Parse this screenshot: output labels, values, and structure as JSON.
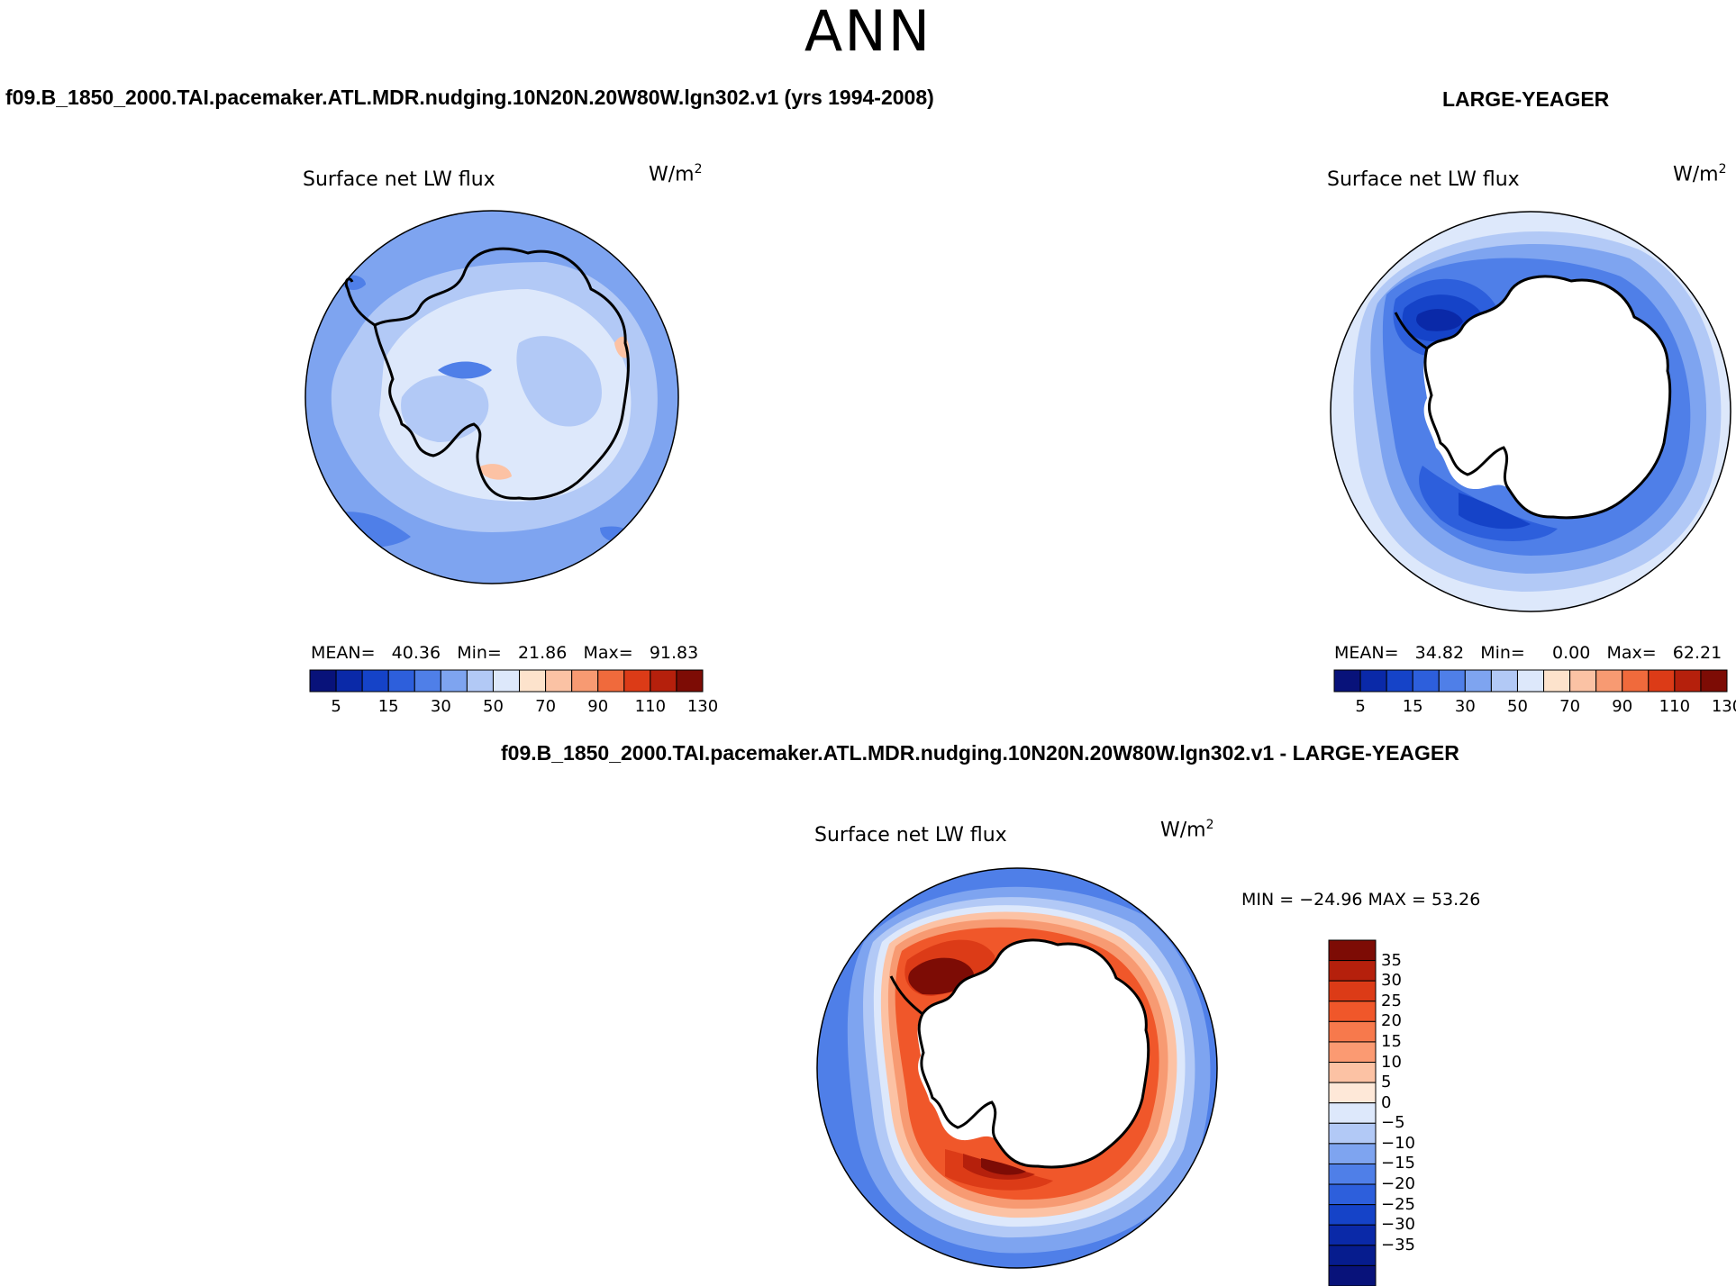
{
  "figure": {
    "title": "ANN",
    "bottom_title": "f09.B_1850_2000.TAI.pacemaker.ATL.MDR.nudging.10N20N.20W80W.lgn302.v1 - LARGE-YEAGER"
  },
  "panels": [
    {
      "case_title": "f09.B_1850_2000.TAI.pacemaker.ATL.MDR.nudging.10N20N.20W80W.lgn302.v1 (yrs 1994-2008)",
      "variable": "Surface net LW flux",
      "units": "W/m",
      "units_sup": "2",
      "stats": {
        "mean_label": "MEAN=",
        "mean": "40.36",
        "min_label": "Min=",
        "min": "21.86",
        "max_label": "Max=",
        "max": "91.83"
      }
    },
    {
      "case_title": "LARGE-YEAGER",
      "variable": "Surface net LW flux",
      "units": "W/m",
      "units_sup": "2",
      "stats": {
        "mean_label": "MEAN=",
        "mean": "34.82",
        "min_label": "Min=",
        "min": "0.00",
        "max_label": "Max=",
        "max": "62.21"
      }
    },
    {
      "variable": "Surface net LW flux",
      "units": "W/m",
      "units_sup": "2",
      "minmax": "MIN = −24.96  MAX =   53.26"
    }
  ],
  "colorbar_abs": {
    "colors": [
      "#08127a",
      "#0a29a8",
      "#1543c8",
      "#2d5fdc",
      "#4f7fe8",
      "#7ea4f0",
      "#b2c9f6",
      "#dde8fb",
      "#fde3cc",
      "#fbc2a4",
      "#f79a72",
      "#f06a3c",
      "#dc3b17",
      "#b5200c",
      "#7d0c05"
    ],
    "ticks": [
      "5",
      "15",
      "30",
      "50",
      "70",
      "90",
      "110",
      "130"
    ]
  },
  "colorbar_diff": {
    "colors": [
      "#7d0c05",
      "#b5200c",
      "#dc3b17",
      "#f0572a",
      "#f7794c",
      "#fb9a72",
      "#fcc2a4",
      "#fee8d8",
      "#dde8fb",
      "#b2c9f6",
      "#7ea4f0",
      "#4f7fe8",
      "#2d5fdc",
      "#1543c8",
      "#0a29a8",
      "#061c8e",
      "#08127a"
    ],
    "ticks": [
      "35",
      "30",
      "25",
      "20",
      "15",
      "10",
      "5",
      "0",
      "−5",
      "−10",
      "−15",
      "−20",
      "−25",
      "−30",
      "−35"
    ]
  },
  "map_colors": {
    "p1_ocean": "#7ea4f0",
    "p1_mid": "#b2c9f6",
    "p1_light": "#dde8fb",
    "p1_dark": "#4f7fe8",
    "p1_warm": "#fcc2a4",
    "p2_outer": "#dde8fb",
    "p2_ring1": "#b2c9f6",
    "p2_ring2": "#7ea4f0",
    "p2_ring3": "#4f7fe8",
    "p2_ring4": "#2d5fdc",
    "p2_ring5": "#1543c8",
    "p2_core": "#0a29a8",
    "p3_outer": "#4f7fe8",
    "p3_ring1": "#7ea4f0",
    "p3_ring2": "#b2c9f6",
    "p3_ring3": "#dde8fb",
    "p3_ring4": "#fcc2a4",
    "p3_ring5": "#f79a72",
    "p3_ring6": "#f0572a",
    "p3_ring7": "#dc3b17",
    "p3_core": "#b5200c",
    "p3_max": "#7d0c05",
    "land_white": "#ffffff"
  }
}
